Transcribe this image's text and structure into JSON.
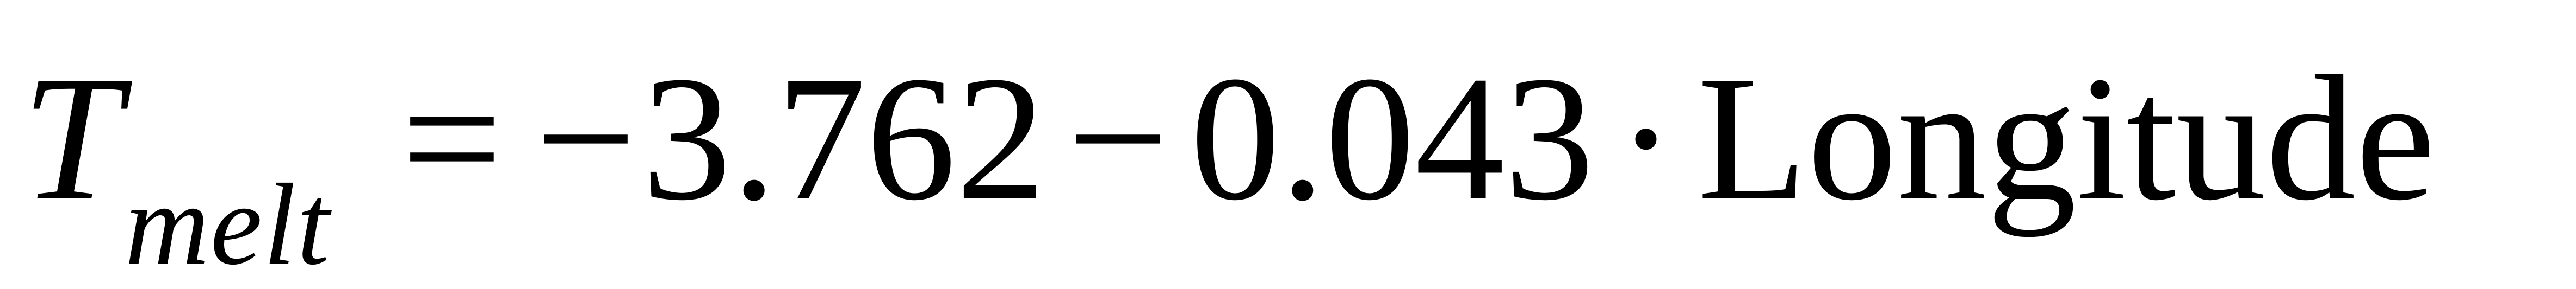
{
  "equation": {
    "variable": "T",
    "subscript": "melt",
    "equals": "=",
    "minus_sign": "−",
    "intercept": "3.762",
    "minus_sign_2": "−",
    "coefficient": "0.043",
    "multiply_dot": "·",
    "term": "Longitude"
  }
}
